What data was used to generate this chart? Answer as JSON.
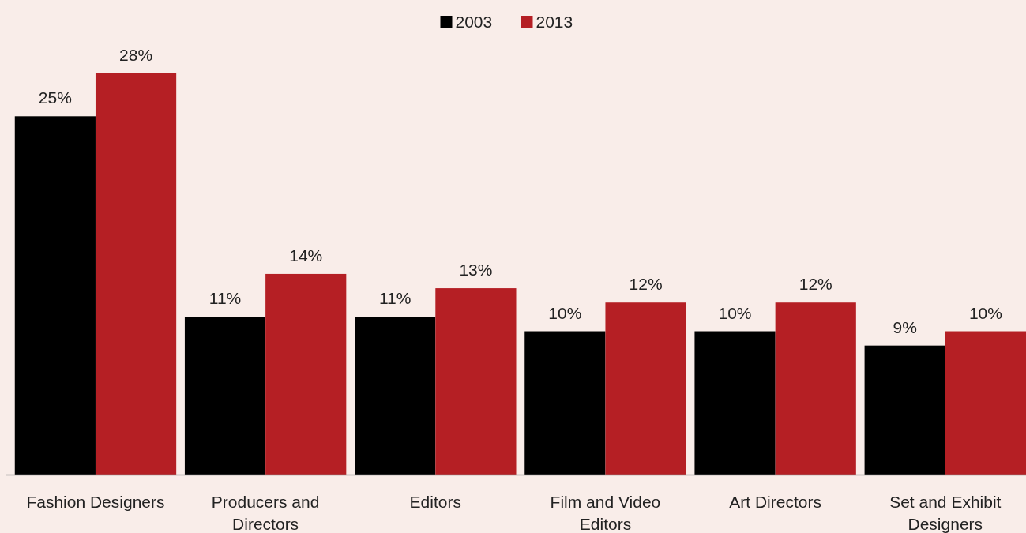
{
  "chart_data": {
    "type": "bar",
    "categories": [
      "Fashion Designers",
      "Producers and Directors",
      "Editors",
      "Film and Video Editors",
      "Art Directors",
      "Set and Exhibit Designers"
    ],
    "series": [
      {
        "name": "2003",
        "color": "#000000",
        "values": [
          25,
          11,
          11,
          10,
          10,
          9
        ],
        "value_labels": [
          "25%",
          "11%",
          "11%",
          "10%",
          "10%",
          "9%"
        ]
      },
      {
        "name": "2013",
        "color": "#b51f24",
        "values": [
          28,
          14,
          13,
          12,
          12,
          10
        ],
        "value_labels": [
          "28%",
          "14%",
          "13%",
          "12%",
          "12%",
          "10%"
        ]
      }
    ],
    "legend": "top"
  }
}
